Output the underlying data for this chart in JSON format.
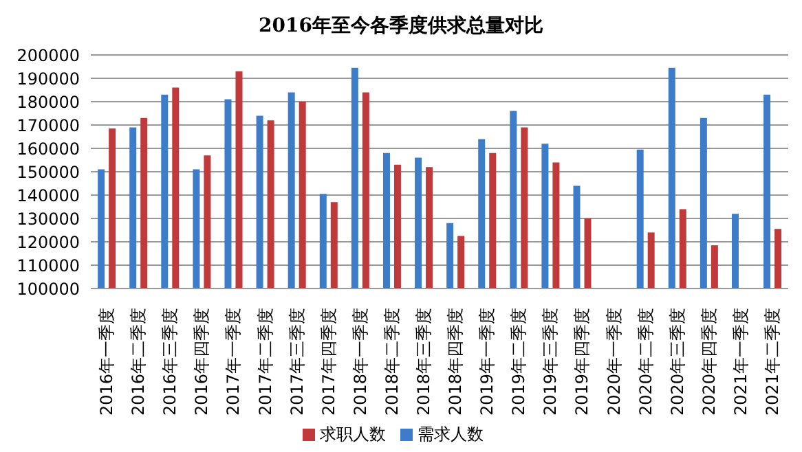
{
  "chart_data": {
    "type": "bar",
    "title": "2016年至今各季度供求总量对比",
    "categories": [
      "2016年一季度",
      "2016年二季度",
      "2016年三季度",
      "2016年四季度",
      "2017年一季度",
      "2017年二季度",
      "2017年三季度",
      "2017年四季度",
      "2018年一季度",
      "2018年二季度",
      "2018年三季度",
      "2018年四季度",
      "2019年一季度",
      "2019年二季度",
      "2019年三季度",
      "2019年四季度",
      "2020年一季度",
      "2020年二季度",
      "2020年三季度",
      "2020年四季度",
      "2021年一季度",
      "2021年二季度"
    ],
    "series": [
      {
        "name": "需求人数",
        "color": "#3d7cc9",
        "values": [
          151000,
          169000,
          183000,
          151000,
          181000,
          174000,
          184000,
          140500,
          194500,
          158000,
          156000,
          128000,
          164000,
          176000,
          162000,
          144000,
          null,
          159500,
          194500,
          173000,
          132000,
          183000
        ]
      },
      {
        "name": "求职人数",
        "color": "#c0393b",
        "values": [
          168500,
          173000,
          186000,
          157000,
          193000,
          172000,
          180000,
          137000,
          184000,
          153000,
          152000,
          122500,
          158000,
          169000,
          154000,
          130000,
          null,
          124000,
          134000,
          118500,
          null,
          125500
        ]
      }
    ],
    "ylim": [
      100000,
      200000
    ],
    "yticks": [
      100000,
      110000,
      120000,
      130000,
      140000,
      150000,
      160000,
      170000,
      180000,
      190000,
      200000
    ],
    "grid": "y",
    "legend": "bottom"
  }
}
